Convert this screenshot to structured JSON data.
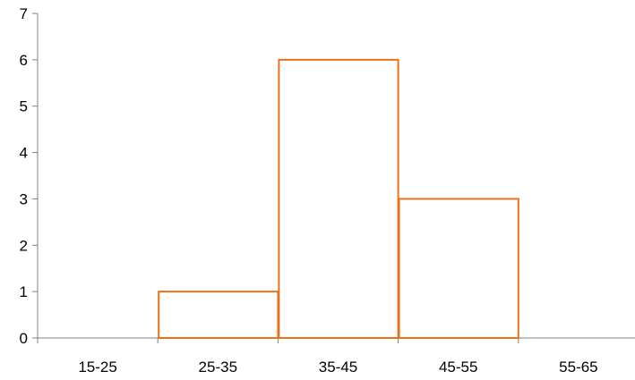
{
  "chart_data": {
    "type": "bar",
    "categories": [
      "15-25",
      "25-35",
      "35-45",
      "45-55",
      "55-65"
    ],
    "values": [
      0,
      1,
      6,
      3,
      0
    ],
    "ylim": [
      0,
      7
    ],
    "yticks": [
      "0",
      "1",
      "2",
      "3",
      "4",
      "5",
      "6",
      "7"
    ],
    "title": "",
    "xlabel": "",
    "ylabel": "",
    "grid": false,
    "legend": "none",
    "bar_style": "outline",
    "bar_color": "#E8731A",
    "axis_color": "#808080"
  }
}
